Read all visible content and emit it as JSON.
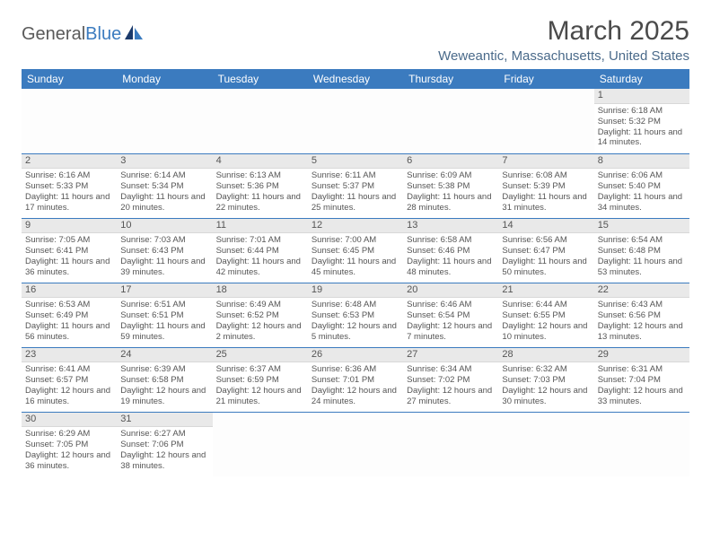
{
  "logo": {
    "part1": "General",
    "part2": "Blue"
  },
  "title": "March 2025",
  "location": "Weweantic, Massachusetts, United States",
  "colors": {
    "header_bg": "#3b7bbf",
    "header_fg": "#ffffff",
    "row_border": "#3b7bbf",
    "daynum_bg": "#e9e9e9",
    "text": "#555555"
  },
  "dayHeaders": [
    "Sunday",
    "Monday",
    "Tuesday",
    "Wednesday",
    "Thursday",
    "Friday",
    "Saturday"
  ],
  "weeks": [
    [
      {
        "empty": true
      },
      {
        "empty": true
      },
      {
        "empty": true
      },
      {
        "empty": true
      },
      {
        "empty": true
      },
      {
        "empty": true
      },
      {
        "n": "1",
        "sr": "6:18 AM",
        "ss": "5:32 PM",
        "dl": "11 hours and 14 minutes."
      }
    ],
    [
      {
        "n": "2",
        "sr": "6:16 AM",
        "ss": "5:33 PM",
        "dl": "11 hours and 17 minutes."
      },
      {
        "n": "3",
        "sr": "6:14 AM",
        "ss": "5:34 PM",
        "dl": "11 hours and 20 minutes."
      },
      {
        "n": "4",
        "sr": "6:13 AM",
        "ss": "5:36 PM",
        "dl": "11 hours and 22 minutes."
      },
      {
        "n": "5",
        "sr": "6:11 AM",
        "ss": "5:37 PM",
        "dl": "11 hours and 25 minutes."
      },
      {
        "n": "6",
        "sr": "6:09 AM",
        "ss": "5:38 PM",
        "dl": "11 hours and 28 minutes."
      },
      {
        "n": "7",
        "sr": "6:08 AM",
        "ss": "5:39 PM",
        "dl": "11 hours and 31 minutes."
      },
      {
        "n": "8",
        "sr": "6:06 AM",
        "ss": "5:40 PM",
        "dl": "11 hours and 34 minutes."
      }
    ],
    [
      {
        "n": "9",
        "sr": "7:05 AM",
        "ss": "6:41 PM",
        "dl": "11 hours and 36 minutes."
      },
      {
        "n": "10",
        "sr": "7:03 AM",
        "ss": "6:43 PM",
        "dl": "11 hours and 39 minutes."
      },
      {
        "n": "11",
        "sr": "7:01 AM",
        "ss": "6:44 PM",
        "dl": "11 hours and 42 minutes."
      },
      {
        "n": "12",
        "sr": "7:00 AM",
        "ss": "6:45 PM",
        "dl": "11 hours and 45 minutes."
      },
      {
        "n": "13",
        "sr": "6:58 AM",
        "ss": "6:46 PM",
        "dl": "11 hours and 48 minutes."
      },
      {
        "n": "14",
        "sr": "6:56 AM",
        "ss": "6:47 PM",
        "dl": "11 hours and 50 minutes."
      },
      {
        "n": "15",
        "sr": "6:54 AM",
        "ss": "6:48 PM",
        "dl": "11 hours and 53 minutes."
      }
    ],
    [
      {
        "n": "16",
        "sr": "6:53 AM",
        "ss": "6:49 PM",
        "dl": "11 hours and 56 minutes."
      },
      {
        "n": "17",
        "sr": "6:51 AM",
        "ss": "6:51 PM",
        "dl": "11 hours and 59 minutes."
      },
      {
        "n": "18",
        "sr": "6:49 AM",
        "ss": "6:52 PM",
        "dl": "12 hours and 2 minutes."
      },
      {
        "n": "19",
        "sr": "6:48 AM",
        "ss": "6:53 PM",
        "dl": "12 hours and 5 minutes."
      },
      {
        "n": "20",
        "sr": "6:46 AM",
        "ss": "6:54 PM",
        "dl": "12 hours and 7 minutes."
      },
      {
        "n": "21",
        "sr": "6:44 AM",
        "ss": "6:55 PM",
        "dl": "12 hours and 10 minutes."
      },
      {
        "n": "22",
        "sr": "6:43 AM",
        "ss": "6:56 PM",
        "dl": "12 hours and 13 minutes."
      }
    ],
    [
      {
        "n": "23",
        "sr": "6:41 AM",
        "ss": "6:57 PM",
        "dl": "12 hours and 16 minutes."
      },
      {
        "n": "24",
        "sr": "6:39 AM",
        "ss": "6:58 PM",
        "dl": "12 hours and 19 minutes."
      },
      {
        "n": "25",
        "sr": "6:37 AM",
        "ss": "6:59 PM",
        "dl": "12 hours and 21 minutes."
      },
      {
        "n": "26",
        "sr": "6:36 AM",
        "ss": "7:01 PM",
        "dl": "12 hours and 24 minutes."
      },
      {
        "n": "27",
        "sr": "6:34 AM",
        "ss": "7:02 PM",
        "dl": "12 hours and 27 minutes."
      },
      {
        "n": "28",
        "sr": "6:32 AM",
        "ss": "7:03 PM",
        "dl": "12 hours and 30 minutes."
      },
      {
        "n": "29",
        "sr": "6:31 AM",
        "ss": "7:04 PM",
        "dl": "12 hours and 33 minutes."
      }
    ],
    [
      {
        "n": "30",
        "sr": "6:29 AM",
        "ss": "7:05 PM",
        "dl": "12 hours and 36 minutes."
      },
      {
        "n": "31",
        "sr": "6:27 AM",
        "ss": "7:06 PM",
        "dl": "12 hours and 38 minutes."
      },
      {
        "empty": true
      },
      {
        "empty": true
      },
      {
        "empty": true
      },
      {
        "empty": true
      },
      {
        "empty": true
      }
    ]
  ],
  "labels": {
    "sunrise": "Sunrise: ",
    "sunset": "Sunset: ",
    "daylight": "Daylight: "
  }
}
